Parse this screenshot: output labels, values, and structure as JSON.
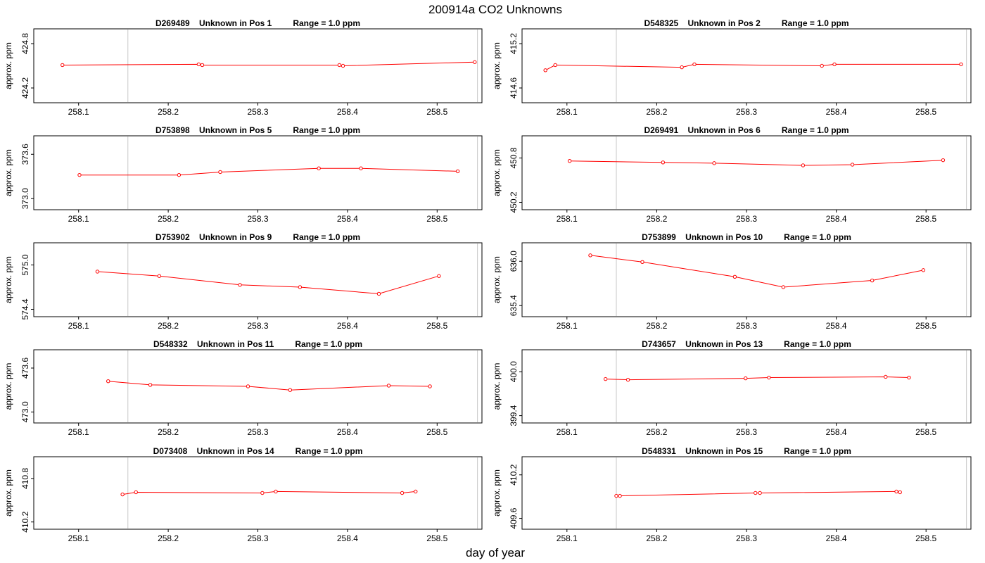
{
  "figure": {
    "title": "200914a  CO2 Unknowns",
    "xlabel": "day of year"
  },
  "chart_data": [
    {
      "type": "line",
      "title": "D269489    Unknown in Pos 1         Range = 1.0 ppm",
      "ylabel": "approx. ppm",
      "xlim": [
        258.05,
        258.55
      ],
      "ylim": [
        424.0,
        425.0
      ],
      "yticks": [
        "424.2",
        "424.8"
      ],
      "xticks": [
        "258.1",
        "258.2",
        "258.3",
        "258.4",
        "258.5"
      ],
      "vlines": [
        258.155,
        258.545
      ],
      "color": "#ff0000",
      "x": [
        258.082,
        258.234,
        258.238,
        258.391,
        258.395,
        258.542
      ],
      "y": [
        424.51,
        424.52,
        424.51,
        424.51,
        424.5,
        424.55
      ]
    },
    {
      "type": "line",
      "title": "D548325    Unknown in Pos 2         Range = 1.0 ppm",
      "ylabel": "approx. ppm",
      "xlim": [
        258.05,
        258.55
      ],
      "ylim": [
        414.4,
        415.4
      ],
      "yticks": [
        "414.6",
        "415.2"
      ],
      "xticks": [
        "258.1",
        "258.2",
        "258.3",
        "258.4",
        "258.5"
      ],
      "vlines": [
        258.155,
        258.545
      ],
      "color": "#ff0000",
      "x": [
        258.076,
        258.087,
        258.228,
        258.242,
        258.384,
        258.398,
        258.539
      ],
      "y": [
        414.84,
        414.91,
        414.88,
        414.92,
        414.9,
        414.92,
        414.92
      ]
    },
    {
      "type": "line",
      "title": "D753898    Unknown in Pos 5         Range = 1.0 ppm",
      "ylabel": "approx. ppm",
      "xlim": [
        258.05,
        258.55
      ],
      "ylim": [
        372.85,
        373.85
      ],
      "yticks": [
        "373.0",
        "373.6"
      ],
      "xticks": [
        "258.1",
        "258.2",
        "258.3",
        "258.4",
        "258.5"
      ],
      "vlines": [
        258.155,
        258.545
      ],
      "color": "#ff0000",
      "x": [
        258.101,
        258.212,
        258.258,
        258.368,
        258.415,
        258.523
      ],
      "y": [
        373.32,
        373.32,
        373.36,
        373.41,
        373.41,
        373.37
      ]
    },
    {
      "type": "line",
      "title": "D269491    Unknown in Pos 6         Range = 1.0 ppm",
      "ylabel": "approx. ppm",
      "xlim": [
        258.05,
        258.55
      ],
      "ylim": [
        450.1,
        451.1
      ],
      "yticks": [
        "450.2",
        "450.8"
      ],
      "xticks": [
        "258.1",
        "258.2",
        "258.3",
        "258.4",
        "258.5"
      ],
      "vlines": [
        258.155,
        258.545
      ],
      "color": "#ff0000",
      "x": [
        258.103,
        258.207,
        258.264,
        258.363,
        258.418,
        258.519
      ],
      "y": [
        450.76,
        450.74,
        450.73,
        450.7,
        450.71,
        450.77
      ]
    },
    {
      "type": "line",
      "title": "D753902    Unknown in Pos 9         Range = 1.0 ppm",
      "ylabel": "approx. ppm",
      "xlim": [
        258.05,
        258.55
      ],
      "ylim": [
        574.3,
        575.3
      ],
      "yticks": [
        "574.4",
        "575.0"
      ],
      "xticks": [
        "258.1",
        "258.2",
        "258.3",
        "258.4",
        "258.5"
      ],
      "vlines": [
        258.155,
        258.545
      ],
      "color": "#ff0000",
      "x": [
        258.121,
        258.19,
        258.28,
        258.347,
        258.435,
        258.502
      ],
      "y": [
        574.91,
        574.85,
        574.73,
        574.7,
        574.61,
        574.85
      ]
    },
    {
      "type": "line",
      "title": "D753899    Unknown in Pos 10         Range = 1.0 ppm",
      "ylabel": "approx. ppm",
      "xlim": [
        258.05,
        258.55
      ],
      "ylim": [
        635.25,
        636.25
      ],
      "yticks": [
        "635.4",
        "636.0"
      ],
      "xticks": [
        "258.1",
        "258.2",
        "258.3",
        "258.4",
        "258.5"
      ],
      "vlines": [
        258.155,
        258.545
      ],
      "color": "#ff0000",
      "x": [
        258.126,
        258.184,
        258.287,
        258.341,
        258.44,
        258.497
      ],
      "y": [
        636.08,
        635.99,
        635.79,
        635.65,
        635.74,
        635.88
      ]
    },
    {
      "type": "line",
      "title": "D548332    Unknown in Pos 11         Range = 1.0 ppm",
      "ylabel": "approx. ppm",
      "xlim": [
        258.05,
        258.55
      ],
      "ylim": [
        472.85,
        473.85
      ],
      "yticks": [
        "473.0",
        "473.6"
      ],
      "xticks": [
        "258.1",
        "258.2",
        "258.3",
        "258.4",
        "258.5"
      ],
      "vlines": [
        258.155,
        258.545
      ],
      "color": "#ff0000",
      "x": [
        258.133,
        258.18,
        258.289,
        258.336,
        258.446,
        258.492
      ],
      "y": [
        473.42,
        473.37,
        473.35,
        473.3,
        473.36,
        473.35
      ]
    },
    {
      "type": "line",
      "title": "D743657    Unknown in Pos 13         Range = 1.0 ppm",
      "ylabel": "approx. ppm",
      "xlim": [
        258.05,
        258.55
      ],
      "ylim": [
        399.3,
        400.3
      ],
      "yticks": [
        "399.4",
        "400.0"
      ],
      "xticks": [
        "258.1",
        "258.2",
        "258.3",
        "258.4",
        "258.5"
      ],
      "vlines": [
        258.155,
        258.545
      ],
      "color": "#ff0000",
      "x": [
        258.143,
        258.168,
        258.299,
        258.325,
        258.455,
        258.481
      ],
      "y": [
        399.9,
        399.89,
        399.91,
        399.92,
        399.93,
        399.92
      ]
    },
    {
      "type": "line",
      "title": "D073408    Unknown in Pos 14         Range = 1.0 ppm",
      "ylabel": "approx. ppm",
      "xlim": [
        258.05,
        258.55
      ],
      "ylim": [
        410.1,
        411.1
      ],
      "yticks": [
        "410.2",
        "410.8"
      ],
      "xticks": [
        "258.1",
        "258.2",
        "258.3",
        "258.4",
        "258.5"
      ],
      "vlines": [
        258.155,
        258.545
      ],
      "color": "#ff0000",
      "x": [
        258.149,
        258.164,
        258.305,
        258.32,
        258.461,
        258.476
      ],
      "y": [
        410.58,
        410.61,
        410.6,
        410.62,
        410.6,
        410.62
      ]
    },
    {
      "type": "line",
      "title": "D548331    Unknown in Pos 15         Range = 1.0 ppm",
      "ylabel": "approx. ppm",
      "xlim": [
        258.05,
        258.55
      ],
      "ylim": [
        409.45,
        410.45
      ],
      "yticks": [
        "409.6",
        "410.2"
      ],
      "xticks": [
        "258.1",
        "258.2",
        "258.3",
        "258.4",
        "258.5"
      ],
      "vlines": [
        258.155,
        258.545
      ],
      "color": "#ff0000",
      "x": [
        258.155,
        258.159,
        258.31,
        258.315,
        258.467,
        258.471
      ],
      "y": [
        409.91,
        409.91,
        409.95,
        409.95,
        409.97,
        409.96
      ]
    }
  ]
}
